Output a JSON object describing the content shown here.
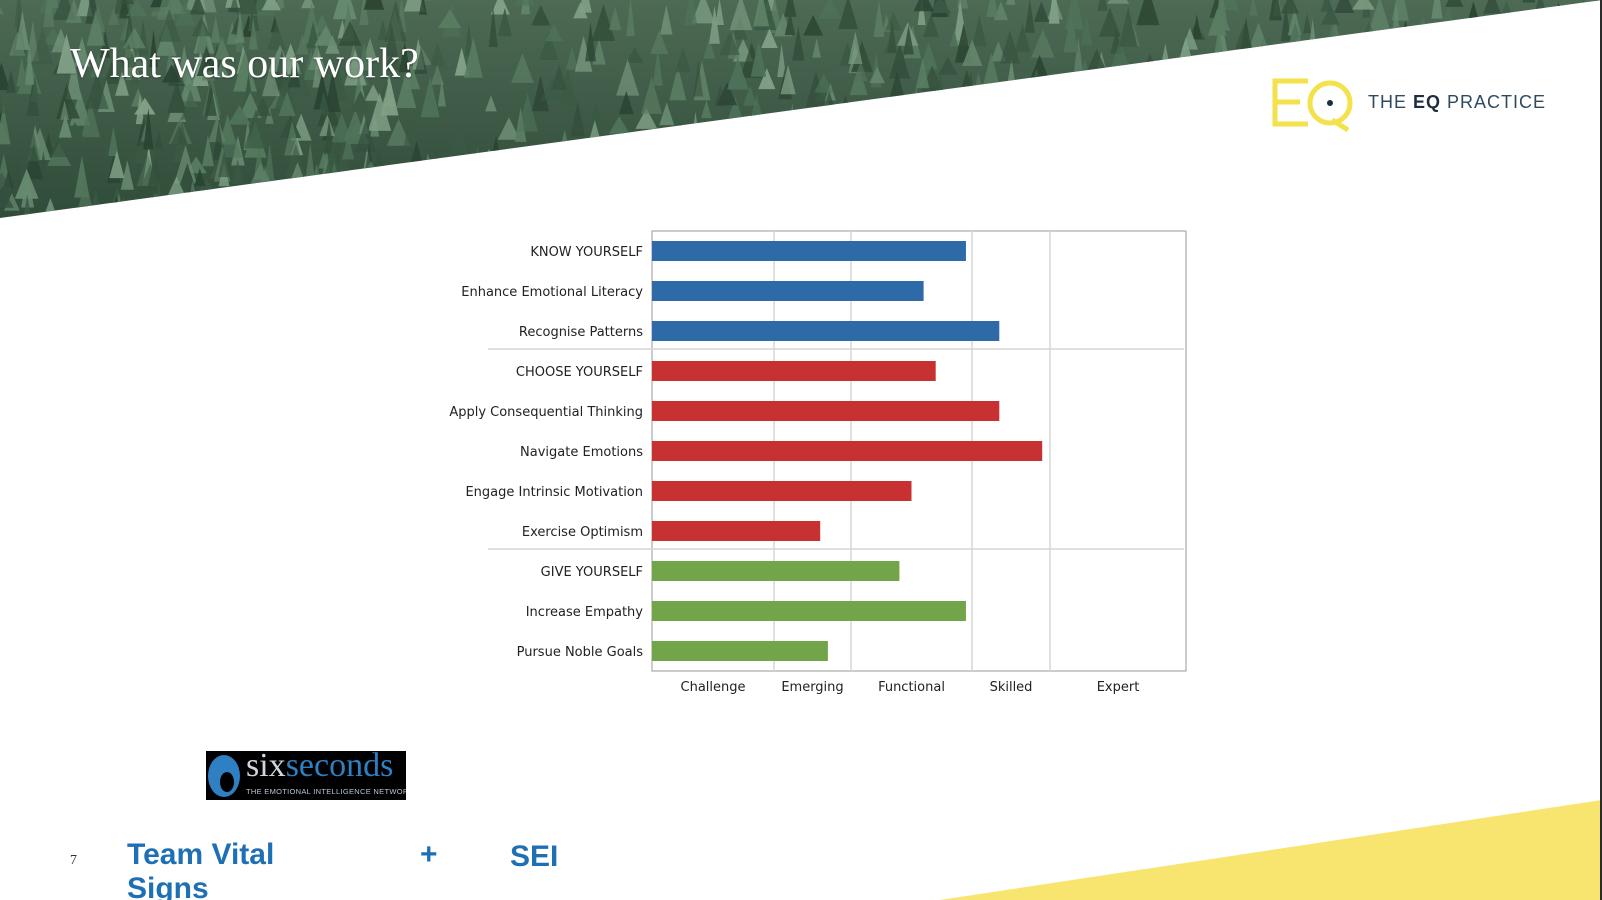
{
  "slide": {
    "title": "What was our work?",
    "page_number": "7"
  },
  "logo": {
    "text_prefix": "THE ",
    "text_bold": "EQ",
    "text_suffix": " PRACTICE",
    "mark_color": "#f3e24c"
  },
  "partner_logo": {
    "word_six": "six",
    "word_seconds": "seconds",
    "tagline": "THE EMOTIONAL INTELLIGENCE NETWORK"
  },
  "bottom": {
    "left_label": "Team Vital Signs",
    "plus": "+",
    "right_label": "SEI"
  },
  "colors": {
    "blue": "#2f6aa8",
    "red": "#c83132",
    "green": "#72a449",
    "yellow": "#f8e56f",
    "label_blue": "#1f6fb5"
  },
  "chart_data": {
    "type": "bar",
    "orientation": "horizontal",
    "grid": true,
    "legend": "none",
    "categories": [
      "KNOW YOURSELF",
      "Enhance Emotional Literacy",
      "Recognise Patterns",
      "CHOOSE YOURSELF",
      "Apply Consequential Thinking",
      "Navigate Emotions",
      "Engage Intrinsic Motivation",
      "Exercise Optimism",
      "GIVE YOURSELF",
      "Increase Empathy",
      "Pursue Noble Goals"
    ],
    "values": [
      2.95,
      2.6,
      3.35,
      2.7,
      3.35,
      3.9,
      2.5,
      1.6,
      2.4,
      2.95,
      1.7
    ],
    "groups": [
      "blue",
      "blue",
      "blue",
      "red",
      "red",
      "red",
      "red",
      "red",
      "green",
      "green",
      "green"
    ],
    "x_categories": [
      "Challenge",
      "Emerging",
      "Functional",
      "Skilled",
      "Expert"
    ],
    "xlim": [
      0,
      6
    ]
  }
}
